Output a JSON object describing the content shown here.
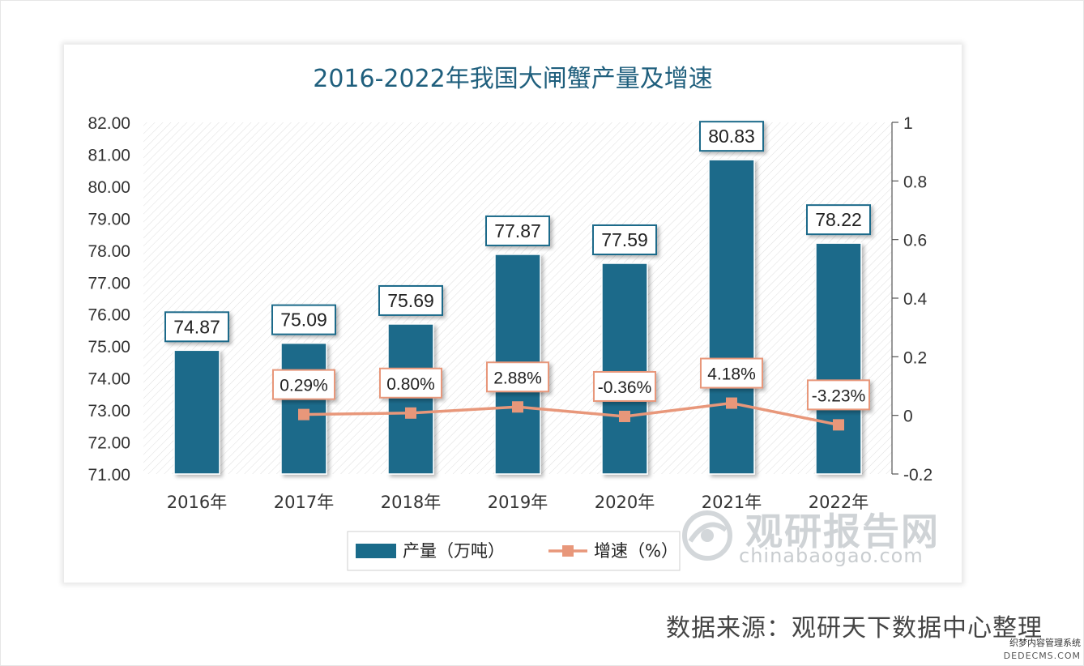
{
  "chart_data": {
    "type": "bar",
    "title": "2016-2022年我国大闸蟹产量及增速",
    "categories": [
      "2016年",
      "2017年",
      "2018年",
      "2019年",
      "2020年",
      "2021年",
      "2022年"
    ],
    "series": [
      {
        "name": "产量（万吨）",
        "type": "bar",
        "axis": "left",
        "color": "#1a6b8a",
        "values": [
          74.87,
          75.09,
          75.69,
          77.87,
          77.59,
          80.83,
          78.22
        ],
        "labels": [
          "74.87",
          "75.09",
          "75.69",
          "77.87",
          "77.59",
          "80.83",
          "78.22"
        ]
      },
      {
        "name": "增速（%）",
        "type": "line",
        "axis": "right",
        "color": "#e8977a",
        "values": [
          null,
          0.0029,
          0.008,
          0.0288,
          -0.0036,
          0.0418,
          -0.0323
        ],
        "labels": [
          "",
          "0.29%",
          "0.80%",
          "2.88%",
          "-0.36%",
          "4.18%",
          "-3.23%"
        ]
      }
    ],
    "y_left": {
      "min": 71,
      "max": 82,
      "step": 1,
      "ticks": [
        "82.00",
        "81.00",
        "80.00",
        "79.00",
        "78.00",
        "77.00",
        "76.00",
        "75.00",
        "74.00",
        "73.00",
        "72.00",
        "71.00"
      ]
    },
    "y_right": {
      "min": -0.2,
      "max": 1,
      "step": 0.2,
      "ticks": [
        "1",
        "0.8",
        "0.6",
        "0.4",
        "0.2",
        "0",
        "-0.2"
      ]
    },
    "legend_position": "bottom",
    "grid": false
  },
  "source_note": "数据来源：观研天下数据中心整理",
  "watermark": {
    "brand": "观研报告网",
    "url": "chinabaogao.com"
  },
  "corner_mark": {
    "line1": "织梦内容管理系统",
    "line2": "DEDECMS.COM"
  }
}
